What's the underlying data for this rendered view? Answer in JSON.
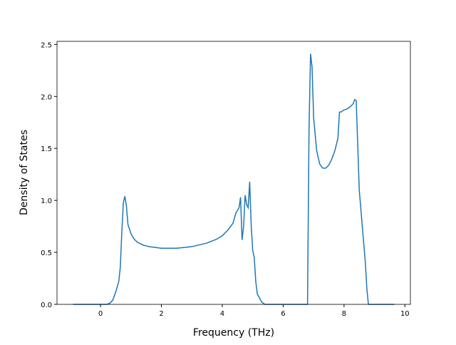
{
  "chart_data": {
    "type": "line",
    "xlabel": "Frequency (THz)",
    "ylabel": "Density of States",
    "xlim": [
      -1.43,
      10.18
    ],
    "ylim": [
      0,
      2.53
    ],
    "xticks": [
      0,
      2,
      4,
      6,
      8,
      10
    ],
    "yticks": [
      {
        "value": 0,
        "label": "0.0"
      },
      {
        "value": 0.5,
        "label": "0.5"
      },
      {
        "value": 1,
        "label": "1.0"
      },
      {
        "value": 1.5,
        "label": "1.5"
      },
      {
        "value": 2,
        "label": "2.0"
      },
      {
        "value": 2.5,
        "label": "2.5"
      }
    ],
    "x": [
      -0.9,
      0.2,
      0.3,
      0.4,
      0.5,
      0.6,
      0.65,
      0.7,
      0.75,
      0.8,
      0.85,
      0.9,
      1.0,
      1.1,
      1.2,
      1.4,
      1.6,
      2.0,
      2.5,
      3.0,
      3.5,
      3.8,
      4.0,
      4.2,
      4.35,
      4.45,
      4.55,
      4.6,
      4.65,
      4.7,
      4.75,
      4.8,
      4.85,
      4.9,
      4.95,
      5.0,
      5.05,
      5.1,
      5.15,
      5.3,
      5.4,
      6.8,
      6.85,
      6.9,
      6.95,
      7.0,
      7.1,
      7.2,
      7.3,
      7.4,
      7.5,
      7.6,
      7.7,
      7.8,
      7.85,
      7.9,
      8.0,
      8.1,
      8.2,
      8.3,
      8.35,
      8.4,
      8.5,
      8.6,
      8.7,
      8.75,
      8.8,
      9.65
    ],
    "series": [
      {
        "color": "#1f77b4",
        "values": [
          0,
          0,
          0.01,
          0.04,
          0.12,
          0.22,
          0.36,
          0.7,
          0.98,
          1.04,
          0.95,
          0.77,
          0.68,
          0.63,
          0.6,
          0.57,
          0.555,
          0.54,
          0.54,
          0.555,
          0.59,
          0.625,
          0.66,
          0.72,
          0.78,
          0.88,
          0.93,
          1.03,
          0.62,
          0.75,
          1.05,
          0.96,
          0.93,
          1.18,
          0.76,
          0.52,
          0.45,
          0.22,
          0.1,
          0.02,
          0,
          0,
          1.7,
          2.41,
          2.28,
          1.8,
          1.48,
          1.35,
          1.31,
          1.31,
          1.34,
          1.4,
          1.48,
          1.6,
          1.85,
          1.85,
          1.87,
          1.88,
          1.9,
          1.93,
          1.97,
          1.96,
          1.1,
          0.75,
          0.4,
          0.15,
          0,
          0
        ]
      }
    ]
  }
}
